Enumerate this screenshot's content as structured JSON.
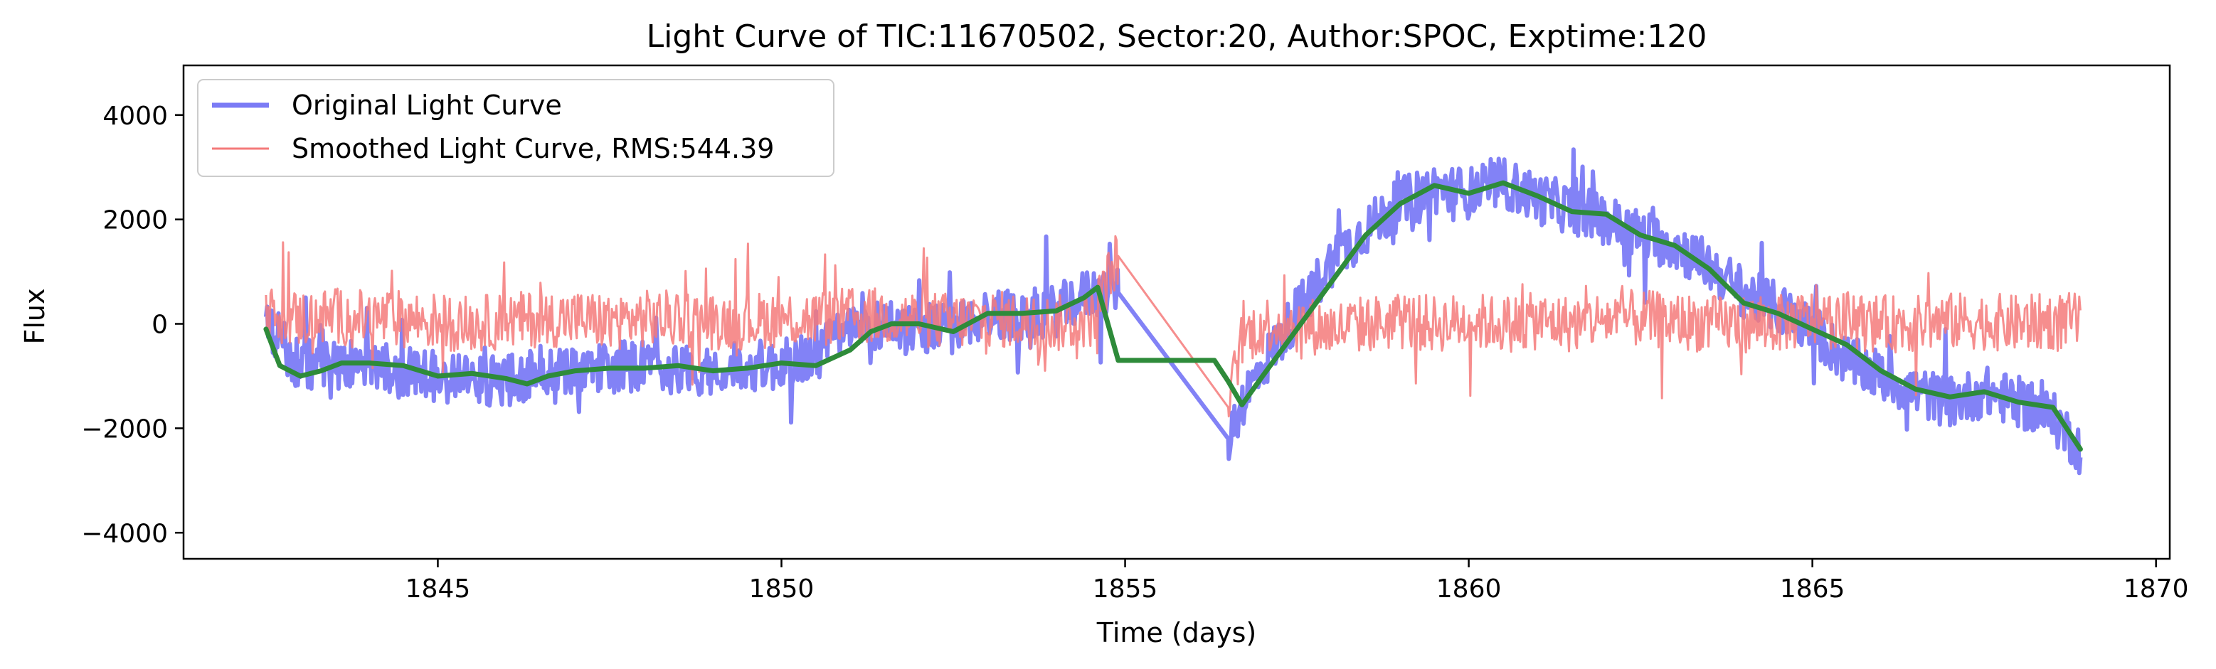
{
  "chart_data": {
    "type": "line",
    "title": "Light Curve of TIC:11670502, Sector:20, Author:SPOC, Exptime:120",
    "xlabel": "Time (days)",
    "ylabel": "Flux",
    "xlim": [
      1841.3,
      1870.2
    ],
    "ylim": [
      -4500,
      4950
    ],
    "xticks": [
      1845,
      1850,
      1855,
      1860,
      1865,
      1870
    ],
    "yticks": [
      -4000,
      -2000,
      0,
      2000,
      4000
    ],
    "xtick_labels": [
      "1845",
      "1850",
      "1855",
      "1860",
      "1865",
      "1870"
    ],
    "ytick_labels": [
      "−4000",
      "−2000",
      "0",
      "2000",
      "4000"
    ],
    "grid": false,
    "legend_position": "top-left",
    "data_gap": [
      1854.9,
      1856.5
    ],
    "series": [
      {
        "name": "Original Light Curve",
        "color": "#7b7bf5",
        "style": "noisy-thick",
        "spread": 900,
        "x": [
          1842.5,
          1843.0,
          1843.5,
          1844.0,
          1844.5,
          1845.0,
          1845.5,
          1846.0,
          1846.5,
          1847.0,
          1847.5,
          1848.0,
          1848.5,
          1849.0,
          1849.5,
          1850.0,
          1850.5,
          1851.0,
          1851.5,
          1852.0,
          1852.5,
          1853.0,
          1853.5,
          1854.0,
          1854.5,
          1854.9,
          1856.5,
          1856.7,
          1857.0,
          1857.5,
          1858.0,
          1858.5,
          1859.0,
          1859.5,
          1860.0,
          1860.5,
          1861.0,
          1861.5,
          1862.0,
          1862.5,
          1863.0,
          1863.5,
          1864.0,
          1864.5,
          1865.0,
          1865.5,
          1866.0,
          1866.5,
          1867.0,
          1867.5,
          1868.0,
          1868.5,
          1868.9
        ],
        "y": [
          -100,
          -800,
          -750,
          -800,
          -950,
          -1000,
          -1050,
          -1100,
          -900,
          -850,
          -850,
          -800,
          -850,
          -900,
          -800,
          -800,
          -600,
          -100,
          0,
          -50,
          -100,
          200,
          150,
          250,
          600,
          600,
          -2200,
          -1500,
          -800,
          200,
          1200,
          1800,
          2300,
          2600,
          2500,
          2700,
          2400,
          2200,
          2000,
          1700,
          1500,
          1100,
          600,
          300,
          -100,
          -700,
          -1000,
          -1300,
          -1500,
          -1300,
          -1500,
          -1800,
          -2400
        ]
      },
      {
        "name": "Smoothed Light Curve, RMS:544.39",
        "color": "#f47a7a",
        "style": "noisy-thin",
        "spread": 1000,
        "x": [
          1842.5,
          1843.0,
          1843.5,
          1844.0,
          1844.5,
          1845.0,
          1845.5,
          1846.0,
          1846.5,
          1847.0,
          1847.5,
          1848.0,
          1848.5,
          1849.0,
          1849.5,
          1850.0,
          1850.5,
          1851.0,
          1851.5,
          1852.0,
          1852.5,
          1853.0,
          1853.5,
          1854.0,
          1854.5,
          1854.9,
          1856.5,
          1856.7,
          1857.0,
          1857.5,
          1858.0,
          1858.5,
          1859.0,
          1859.5,
          1860.0,
          1860.5,
          1861.0,
          1861.5,
          1862.0,
          1862.5,
          1863.0,
          1863.5,
          1864.0,
          1864.5,
          1865.0,
          1865.5,
          1866.0,
          1866.5,
          1867.0,
          1867.5,
          1868.0,
          1868.5,
          1868.9
        ],
        "y": [
          200,
          100,
          150,
          100,
          100,
          50,
          0,
          50,
          100,
          100,
          50,
          100,
          100,
          50,
          50,
          100,
          100,
          150,
          150,
          100,
          50,
          100,
          50,
          0,
          100,
          1300,
          -1600,
          -300,
          0,
          0,
          -100,
          0,
          50,
          0,
          50,
          0,
          50,
          0,
          100,
          100,
          50,
          0,
          0,
          0,
          100,
          50,
          0,
          0,
          50,
          50,
          0,
          50,
          50
        ]
      },
      {
        "name": "",
        "color": "#2e8b3a",
        "style": "smooth",
        "x": [
          1842.5,
          1842.7,
          1843.0,
          1843.3,
          1843.6,
          1844.0,
          1844.5,
          1845.0,
          1845.5,
          1846.0,
          1846.3,
          1846.6,
          1847.0,
          1847.5,
          1848.0,
          1848.5,
          1849.0,
          1849.5,
          1850.0,
          1850.5,
          1851.0,
          1851.3,
          1851.6,
          1852.0,
          1852.5,
          1853.0,
          1853.5,
          1854.0,
          1854.4,
          1854.6,
          1854.9,
          1856.3,
          1856.5,
          1856.7,
          1857.0,
          1857.5,
          1858.0,
          1858.5,
          1859.0,
          1859.5,
          1860.0,
          1860.5,
          1861.0,
          1861.5,
          1862.0,
          1862.5,
          1863.0,
          1863.5,
          1864.0,
          1864.5,
          1865.0,
          1865.5,
          1866.0,
          1866.5,
          1867.0,
          1867.5,
          1868.0,
          1868.5,
          1868.9
        ],
        "y": [
          -100,
          -800,
          -1000,
          -900,
          -750,
          -750,
          -800,
          -1000,
          -950,
          -1050,
          -1150,
          -1000,
          -900,
          -850,
          -850,
          -800,
          -900,
          -850,
          -750,
          -800,
          -500,
          -150,
          0,
          0,
          -150,
          200,
          200,
          250,
          500,
          700,
          -700,
          -700,
          -1100,
          -1550,
          -1000,
          -100,
          800,
          1700,
          2300,
          2650,
          2500,
          2700,
          2450,
          2150,
          2100,
          1700,
          1500,
          1050,
          400,
          200,
          -100,
          -400,
          -900,
          -1250,
          -1400,
          -1300,
          -1500,
          -1600,
          -2400
        ]
      }
    ]
  }
}
